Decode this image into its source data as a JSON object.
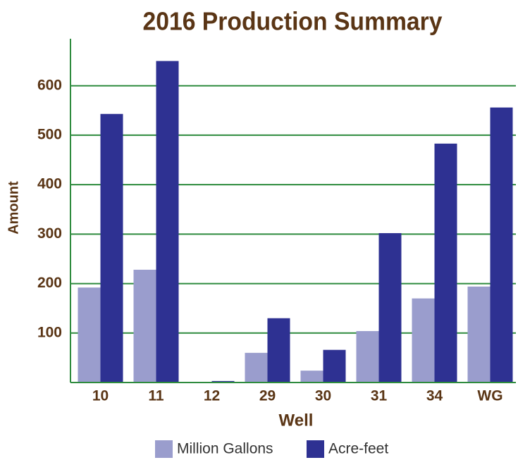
{
  "chart_data": {
    "type": "bar",
    "title": "2016 Production Summary",
    "x_label": "Well",
    "y_label": "Amount",
    "categories": [
      "10",
      "11",
      "12",
      "29",
      "30",
      "31",
      "34",
      "WG"
    ],
    "series": [
      {
        "name": "Million Gallons",
        "color": "#9a9dcd",
        "values": [
          192,
          228,
          1,
          60,
          24,
          104,
          170,
          194
        ]
      },
      {
        "name": "Acre-feet",
        "color": "#2e3192",
        "values": [
          543,
          650,
          3,
          130,
          66,
          302,
          483,
          556
        ]
      }
    ],
    "ylim": [
      0,
      695
    ],
    "yticks": [
      100,
      200,
      300,
      400,
      500,
      600
    ],
    "grid": true,
    "grid_color": "#2e8b3e"
  }
}
